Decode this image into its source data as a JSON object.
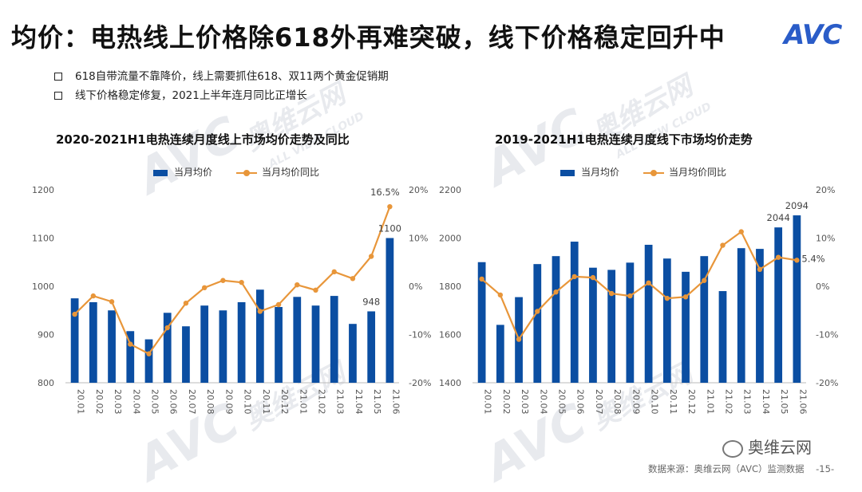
{
  "title": "均价：电热线上价格除618外再难突破，线下价格稳定回升中",
  "logo": "AVC",
  "bullets": [
    "618自带流量不靠降价，线上需要抓住618、双11两个黄金促销期",
    "线下价格稳定修复，2021上半年连月同比正增长"
  ],
  "watermark": "奥维云网",
  "watermark_sub": "ALL VIEW CLOUD",
  "colors": {
    "bar": "#0b4ea2",
    "line": "#e8963a"
  },
  "chart_data": [
    {
      "type": "bar+line",
      "title": "2020-2021H1电热连续月度线上市场均价走势及同比",
      "legend": [
        "当月均价",
        "当月均价同比"
      ],
      "categories": [
        "20.01",
        "20.02",
        "20.03",
        "20.04",
        "20.05",
        "20.06",
        "20.07",
        "20.08",
        "20.09",
        "20.10",
        "20.11",
        "20.12",
        "21.01",
        "21.02",
        "21.03",
        "21.04",
        "21.05",
        "21.06"
      ],
      "bar_values": [
        975,
        967,
        950,
        907,
        890,
        945,
        917,
        960,
        950,
        967,
        993,
        957,
        978,
        960,
        980,
        922,
        948,
        1100
      ],
      "line_values": [
        -5.8,
        -2.0,
        -3.2,
        -12.0,
        -14.0,
        -8.6,
        -3.5,
        -0.3,
        1.2,
        0.8,
        -5.2,
        -3.8,
        0.3,
        -0.8,
        3.0,
        1.6,
        6.2,
        16.5
      ],
      "ylim_left": [
        800,
        1200
      ],
      "yticks_left": [
        "1200",
        "1100",
        "1000",
        "900",
        "800"
      ],
      "ylim_right": [
        -20,
        20
      ],
      "yticks_right": [
        "20%",
        "10%",
        "0%",
        "-10%",
        "-20%"
      ],
      "bar_labels": [
        {
          "index": 16,
          "text": "948"
        },
        {
          "index": 17,
          "text": "1100"
        }
      ],
      "line_labels": [
        {
          "index": 17,
          "text": "16.5%"
        }
      ]
    },
    {
      "type": "bar+line",
      "title": "2019-2021H1电热连续月度线下市场均价走势",
      "legend": [
        "当月均价",
        "当月均价同比"
      ],
      "categories": [
        "20.01",
        "20.02",
        "20.03",
        "20.04",
        "20.05",
        "20.06",
        "20.07",
        "20.08",
        "20.09",
        "20.10",
        "20.11",
        "20.12",
        "21.01",
        "21.02",
        "21.03",
        "21.04",
        "21.05",
        "21.06"
      ],
      "bar_values": [
        1900,
        1640,
        1755,
        1892,
        1925,
        1985,
        1877,
        1868,
        1898,
        1972,
        1915,
        1860,
        1925,
        1780,
        1958,
        1955,
        2044,
        2094
      ],
      "line_values": [
        1.5,
        -1.8,
        -11.0,
        -5.2,
        -1.2,
        2.0,
        1.8,
        -1.5,
        -2.0,
        0.7,
        -2.5,
        -2.2,
        1.2,
        8.5,
        11.3,
        3.5,
        6.0,
        5.4
      ],
      "ylim_left": [
        1400,
        2200
      ],
      "yticks_left": [
        "2200",
        "2000",
        "1800",
        "1600",
        "1400"
      ],
      "ylim_right": [
        -20,
        20
      ],
      "yticks_right": [
        "20%",
        "10%",
        "0%",
        "-10%",
        "-20%"
      ],
      "bar_labels": [
        {
          "index": 16,
          "text": "2044"
        },
        {
          "index": 17,
          "text": "2094"
        }
      ],
      "line_labels": [
        {
          "index": 17,
          "text": "5.4%"
        }
      ]
    }
  ],
  "wechat": "奥维云网",
  "source": "数据来源：奥维云网（AVC）监测数据",
  "page_number": "-15-"
}
